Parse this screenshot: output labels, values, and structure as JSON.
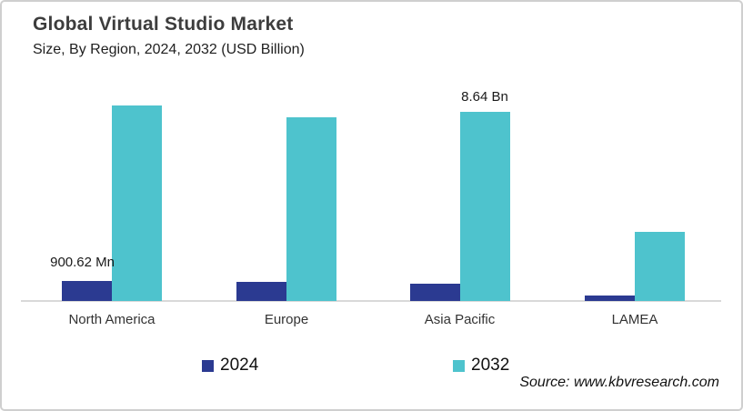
{
  "header": {
    "title": "Global Virtual Studio Market",
    "subtitle": "Size, By Region, 2024, 2032 (USD Billion)"
  },
  "chart_data": {
    "type": "bar",
    "title": "Global Virtual Studio Market Size, By Region, 2024, 2032 (USD Billion)",
    "unit": "USD Billion",
    "categories": [
      "North America",
      "Europe",
      "Asia Pacific",
      "LAMEA"
    ],
    "series": [
      {
        "name": "2024",
        "color": "#2b3a91",
        "values": [
          0.90062,
          0.87,
          0.8,
          0.27
        ]
      },
      {
        "name": "2032",
        "color": "#4ec3cd",
        "values": [
          8.92,
          8.38,
          8.64,
          3.14
        ]
      }
    ],
    "annotations": [
      {
        "text": "900.62 Mn",
        "category": "North America",
        "series": "2024"
      },
      {
        "text": "8.64 Bn",
        "category": "Asia Pacific",
        "series": "2032"
      }
    ],
    "ylim": [
      0,
      10
    ],
    "grid": false,
    "y_axis_visible": false,
    "legend_position": "bottom"
  },
  "source": {
    "text": "Source: www.kbvresearch.com"
  }
}
